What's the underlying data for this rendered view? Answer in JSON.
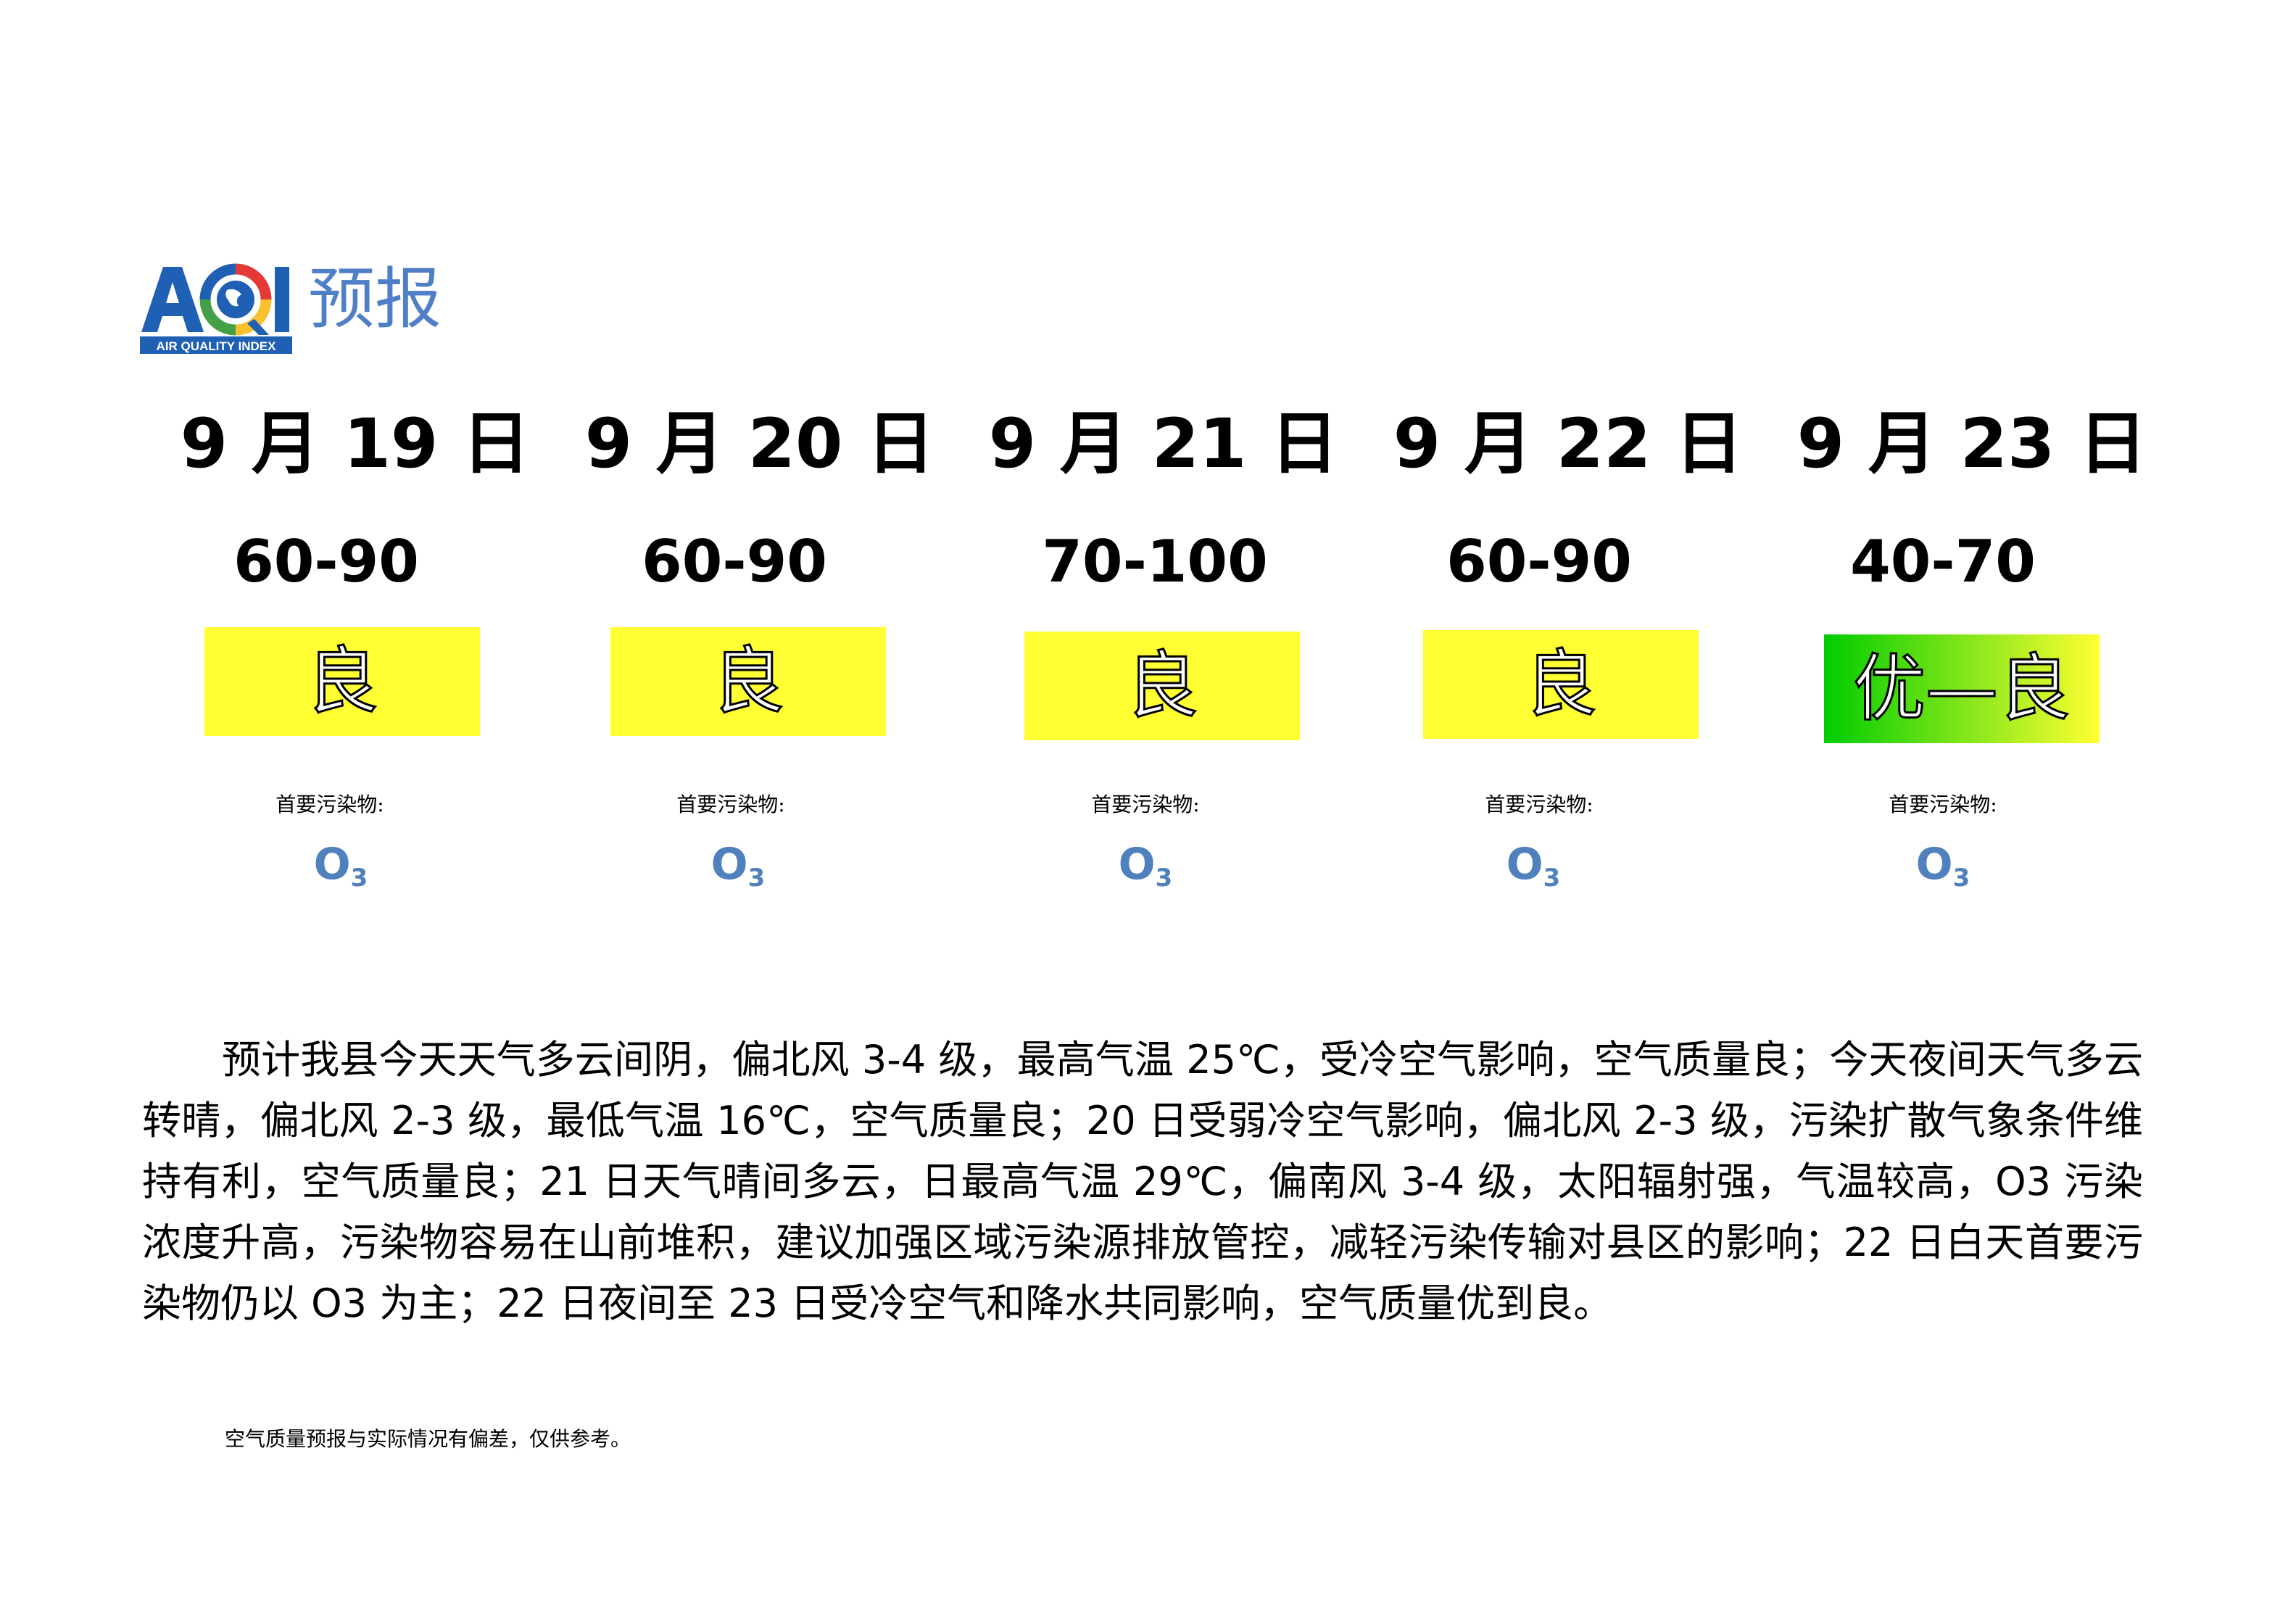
{
  "header": {
    "logo_text": "AQI",
    "logo_subtitle": "AIR QUALITY INDEX",
    "title": "预报"
  },
  "forecast": [
    {
      "date": "9 月 19 日",
      "aqi_range": "60-90",
      "level": "良",
      "pollutant_label": "首要污染物:",
      "pollutant": "O",
      "pollutant_sub": "3",
      "level_color": "#ffff33"
    },
    {
      "date": "9 月 20 日",
      "aqi_range": "60-90",
      "level": "良",
      "pollutant_label": "首要污染物:",
      "pollutant": "O",
      "pollutant_sub": "3",
      "level_color": "#ffff33"
    },
    {
      "date": "9 月 21 日",
      "aqi_range": "70-100",
      "level": "良",
      "pollutant_label": "首要污染物:",
      "pollutant": "O",
      "pollutant_sub": "3",
      "level_color": "#ffff33"
    },
    {
      "date": "9 月 22 日",
      "aqi_range": "60-90",
      "level": "良",
      "pollutant_label": "首要污染物:",
      "pollutant": "O",
      "pollutant_sub": "3",
      "level_color": "#ffff33"
    },
    {
      "date": "9 月 23 日",
      "aqi_range": "40-70",
      "level": "优—良",
      "pollutant_label": "首要污染物:",
      "pollutant": "O",
      "pollutant_sub": "3",
      "level_gradient": [
        "#00cc00",
        "#ffff33"
      ]
    }
  ],
  "description": "预计我县今天天气多云间阴，偏北风 3-4 级，最高气温 25℃，受冷空气影响，空气质量良；今天夜间天气多云转晴，偏北风 2-3 级，最低气温 16℃，空气质量良；20 日受弱冷空气影响，偏北风 2-3 级，污染扩散气象条件维持有利，空气质量良；21 日天气晴间多云，日最高气温 29℃，偏南风 3-4 级，太阳辐射强，气温较高，O3 污染浓度升高，污染物容易在山前堆积，建议加强区域污染源排放管控，减轻污染传输对县区的影响；22 日白天首要污染物仍以 O3 为主；22 日夜间至 23 日受冷空气和降水共同影响，空气质量优到良。",
  "note": "空气质量预报与实际情况有偏差，仅供参考。",
  "colors": {
    "logo_blue": "#1f5fb4",
    "title_blue": "#4f7fc7",
    "pollutant_blue": "#4f81bd",
    "good_yellow": "#ffff33",
    "excellent_green": "#00cc00"
  }
}
